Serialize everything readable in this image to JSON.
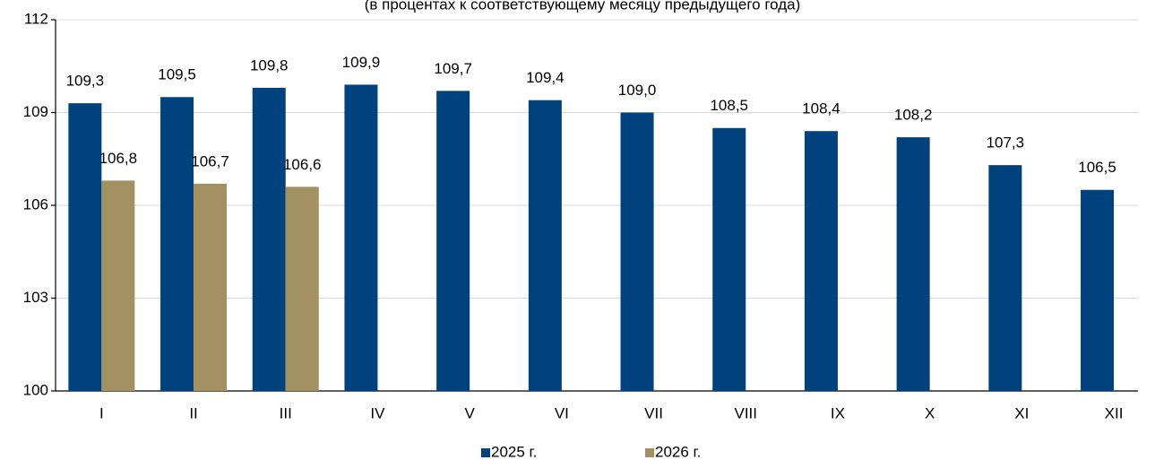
{
  "chart_data": {
    "type": "bar",
    "subtitle": "(в процентах к соответствующему месяцу предыдущего года)",
    "categories": [
      "I",
      "II",
      "III",
      "IV",
      "V",
      "VI",
      "VII",
      "VIII",
      "IX",
      "X",
      "XI",
      "XII"
    ],
    "series": [
      {
        "name": "2025 г.",
        "color": "#00427e",
        "values": [
          109.3,
          109.5,
          109.8,
          109.9,
          109.7,
          109.4,
          109.0,
          108.5,
          108.4,
          108.2,
          107.3,
          106.5
        ],
        "value_labels": [
          "109,3",
          "109,5",
          "109,8",
          "109,9",
          "109,7",
          "109,4",
          "109,0",
          "108,5",
          "108,4",
          "108,2",
          "107,3",
          "106,5"
        ]
      },
      {
        "name": "2026 г.",
        "color": "#a39161",
        "values": [
          106.8,
          106.7,
          106.6,
          null,
          null,
          null,
          null,
          null,
          null,
          null,
          null,
          null
        ],
        "value_labels": [
          "106,8",
          "106,7",
          "106,6",
          null,
          null,
          null,
          null,
          null,
          null,
          null,
          null,
          null
        ]
      }
    ],
    "ylim": [
      100,
      112
    ],
    "yticks": [
      100,
      103,
      106,
      109,
      112
    ],
    "grid": true,
    "legend": "bottom"
  }
}
